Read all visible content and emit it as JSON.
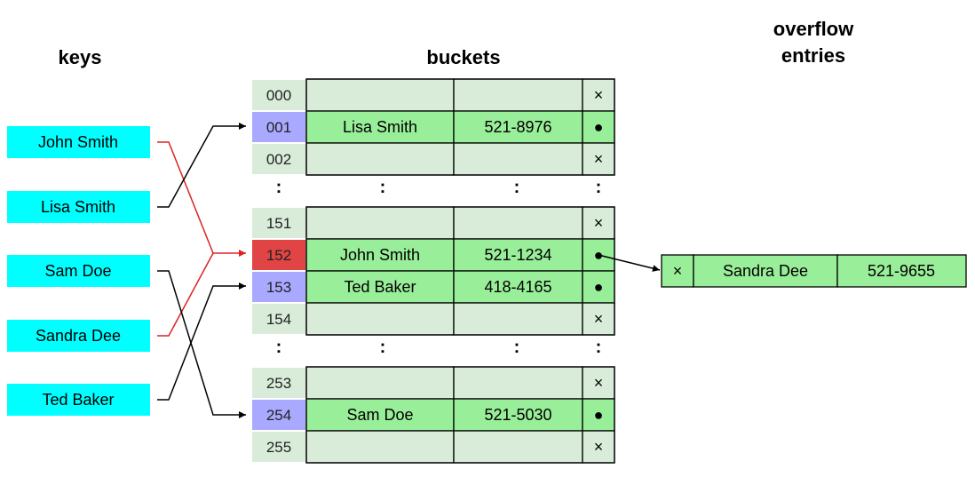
{
  "headers": {
    "keys": "keys",
    "buckets": "buckets",
    "overflow_line1": "overflow",
    "overflow_line2": "entries"
  },
  "keys": [
    {
      "label": "John Smith",
      "color": "#00ffff"
    },
    {
      "label": "Lisa Smith",
      "color": "#00ffff"
    },
    {
      "label": "Sam Doe",
      "color": "#00ffff"
    },
    {
      "label": "Sandra Dee",
      "color": "#00ffff"
    },
    {
      "label": "Ted Baker",
      "color": "#00ffff"
    }
  ],
  "bucket_groups": [
    {
      "rows": [
        {
          "index": "000",
          "name": "",
          "phone": "",
          "pointer": "×",
          "index_color": "#d9ecd9"
        },
        {
          "index": "001",
          "name": "Lisa Smith",
          "phone": "521-8976",
          "pointer": "●",
          "index_color": "#a9a9ff"
        },
        {
          "index": "002",
          "name": "",
          "phone": "",
          "pointer": "×",
          "index_color": "#d9ecd9"
        }
      ]
    },
    {
      "rows": [
        {
          "index": "151",
          "name": "",
          "phone": "",
          "pointer": "×",
          "index_color": "#d9ecd9"
        },
        {
          "index": "152",
          "name": "John Smith",
          "phone": "521-1234",
          "pointer": "●",
          "index_color": "#e04444"
        },
        {
          "index": "153",
          "name": "Ted Baker",
          "phone": "418-4165",
          "pointer": "●",
          "index_color": "#a9a9ff"
        },
        {
          "index": "154",
          "name": "",
          "phone": "",
          "pointer": "×",
          "index_color": "#d9ecd9"
        }
      ]
    },
    {
      "rows": [
        {
          "index": "253",
          "name": "",
          "phone": "",
          "pointer": "×",
          "index_color": "#d9ecd9"
        },
        {
          "index": "254",
          "name": "Sam Doe",
          "phone": "521-5030",
          "pointer": "●",
          "index_color": "#a9a9ff"
        },
        {
          "index": "255",
          "name": "",
          "phone": "",
          "pointer": "×",
          "index_color": "#d9ecd9"
        }
      ]
    }
  ],
  "ellipsis": ":",
  "overflow_entry": {
    "pointer": "×",
    "name": "Sandra Dee",
    "phone": "521-9655"
  },
  "colors": {
    "key_fill": "#00ffff",
    "filled_cell": "#99ee99",
    "empty_cell": "#d9ecd9",
    "collision_line": "#dd2222",
    "normal_line": "#000000"
  }
}
